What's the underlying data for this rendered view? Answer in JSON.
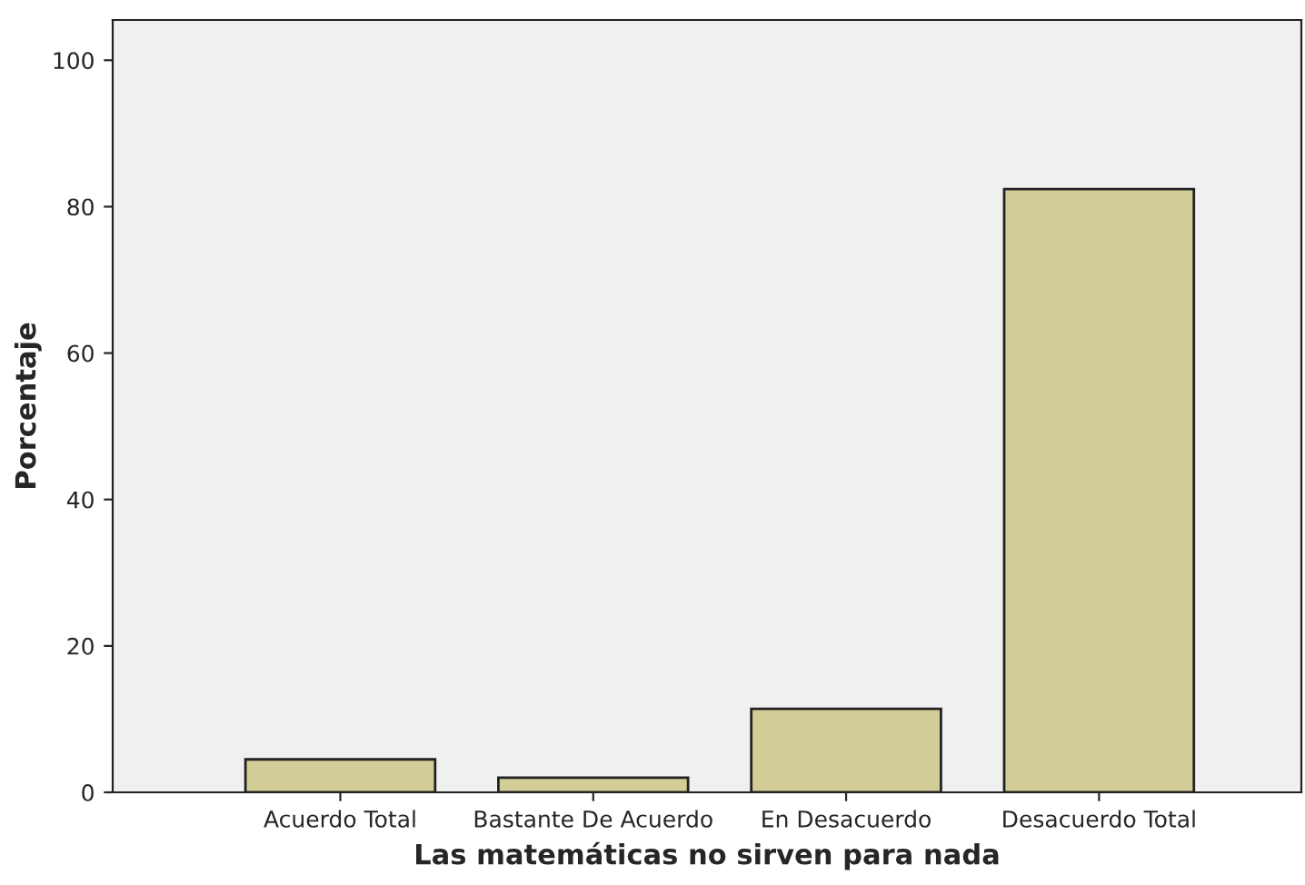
{
  "chart_data": {
    "type": "bar",
    "xlabel": "Las matemáticas no sirven para nada",
    "ylabel": "Porcentaje",
    "categories": [
      "Acuerdo Total",
      "Bastante De Acuerdo",
      "En Desacuerdo",
      "Desacuerdo Total"
    ],
    "values": [
      4.5,
      2.0,
      11.4,
      82.4
    ],
    "color": "#d3ce97",
    "ylim": [
      0,
      105.5
    ],
    "yticks": [
      0,
      20,
      40,
      60,
      80,
      100
    ],
    "grid": false
  }
}
